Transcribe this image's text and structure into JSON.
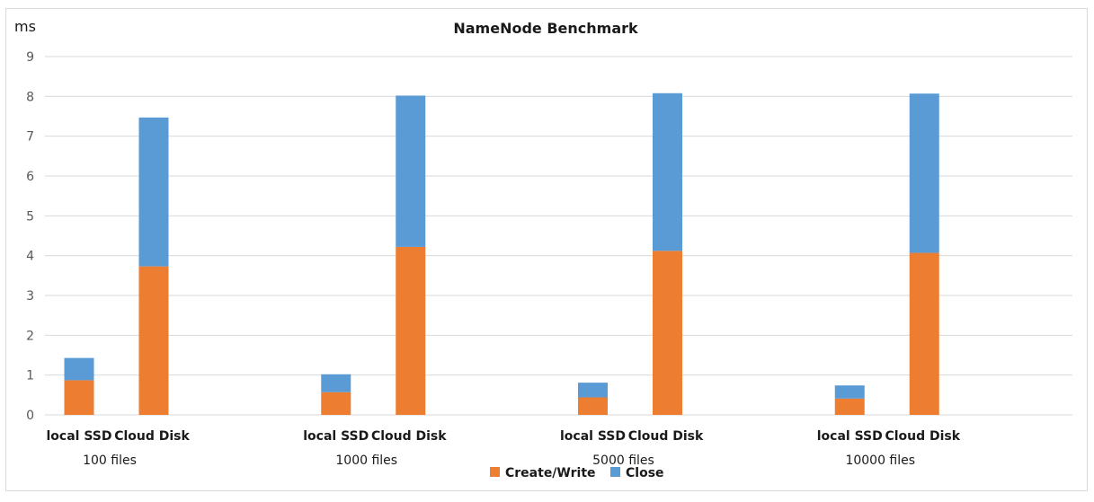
{
  "chart_data": {
    "type": "bar",
    "stacked": true,
    "title": "NameNode Benchmark",
    "ylabel": "ms",
    "xlabel": "",
    "ylim": [
      0,
      9
    ],
    "yticks": [
      "0",
      "1",
      "2",
      "3",
      "4",
      "5",
      "6",
      "7",
      "8",
      "9"
    ],
    "grid": true,
    "legend_position": "bottom",
    "groups": [
      {
        "label": "100 files",
        "categories": [
          "local SSD",
          "Cloud Disk"
        ]
      },
      {
        "label": "1000 files",
        "categories": [
          "local SSD",
          "Cloud Disk"
        ]
      },
      {
        "label": "5000 files",
        "categories": [
          "local SSD",
          "Cloud Disk"
        ]
      },
      {
        "label": "10000 files",
        "categories": [
          "local SSD",
          "Cloud Disk"
        ]
      }
    ],
    "series": [
      {
        "name": "Create/Write",
        "color": "#ed7d31",
        "values": [
          0.87,
          3.73,
          0.57,
          4.22,
          0.44,
          4.12,
          0.41,
          4.07
        ]
      },
      {
        "name": "Close",
        "color": "#5b9bd5",
        "values": [
          0.56,
          3.74,
          0.45,
          3.8,
          0.37,
          3.96,
          0.33,
          4.0
        ]
      }
    ]
  }
}
